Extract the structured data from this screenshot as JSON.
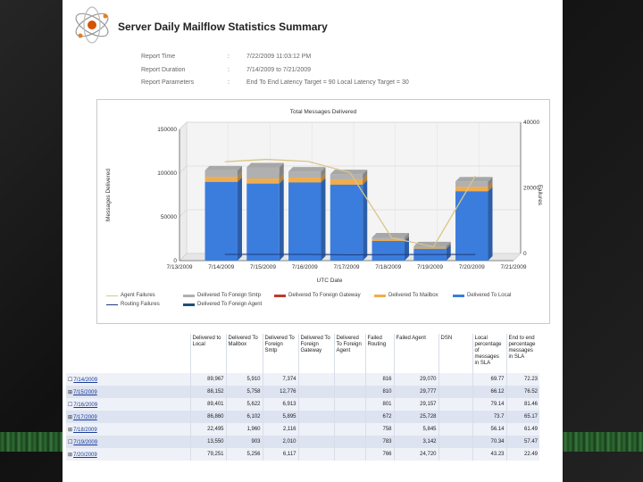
{
  "report": {
    "title": "Server Daily Mailflow Statistics Summary",
    "meta": [
      {
        "label": "Report Time",
        "sep": ":",
        "value": "7/22/2009 11:03:12 PM"
      },
      {
        "label": "Report Duration",
        "sep": ":",
        "value": "7/14/2009 to 7/21/2009"
      },
      {
        "label": "Report Parameters",
        "sep": ":",
        "value": "End To End Latency Target = 90 Local Latency Target = 30"
      }
    ]
  },
  "chart_data": {
    "type": "bar",
    "title": "Total Messages Delivered",
    "xlabel": "UTC Date",
    "ylabel": "Messages Delivered",
    "y2label": "Failures",
    "ylim": [
      0,
      150000
    ],
    "y2lim": [
      0,
      40000
    ],
    "yticks": [
      "0",
      "50000",
      "100000",
      "150000"
    ],
    "y2ticks": [
      "0",
      "20000",
      "40000"
    ],
    "categories": [
      "7/13/2009",
      "7/14/2009",
      "7/15/2009",
      "7/16/2009",
      "7/17/2009",
      "7/18/2009",
      "7/19/2009",
      "7/20/2009",
      "7/21/2009"
    ],
    "stack_series": [
      {
        "name": "Delivered To Local",
        "color": "#3b7ddd",
        "values": [
          null,
          89967,
          88152,
          89401,
          86860,
          22495,
          13550,
          79251,
          null
        ]
      },
      {
        "name": "Delivered To Mailbox",
        "color": "#f0ad4e",
        "values": [
          null,
          5910,
          5758,
          5622,
          6102,
          1960,
          903,
          5256,
          null
        ]
      },
      {
        "name": "Delivered To Foreign Smtp",
        "color": "#b0b0b0",
        "values": [
          null,
          7374,
          12776,
          6913,
          5895,
          2116,
          2010,
          6117,
          null
        ]
      },
      {
        "name": "Delivered To Foreign Gateway",
        "color": "#c0392b",
        "values": [
          null,
          0,
          0,
          0,
          0,
          0,
          0,
          0,
          null
        ]
      },
      {
        "name": "Delivered To Foreign Agent",
        "color": "#1f4e79",
        "values": [
          null,
          0,
          0,
          0,
          0,
          0,
          0,
          0,
          null
        ]
      }
    ],
    "line_series": [
      {
        "name": "Agent Failures",
        "color": "#d9c48a",
        "axis": "y2",
        "values": [
          null,
          29070,
          29777,
          29157,
          25728,
          5845,
          3142,
          24720,
          null
        ]
      },
      {
        "name": "Routing Failures",
        "color": "#1f3a7a",
        "axis": "y2",
        "values": [
          null,
          816,
          810,
          801,
          672,
          758,
          783,
          766,
          null
        ]
      }
    ],
    "legend": [
      "Agent Failures",
      "Delivered To Foreign Smtp",
      "Delivered To Foreign Gateway",
      "Delivered To Mailbox",
      "Delivered To Local",
      "Routing Failures",
      "Delivered To Foreign Agent"
    ]
  },
  "table": {
    "headers": [
      "",
      "Delivered to Local",
      "Delivered To Mailbox",
      "Delivered To Foreign Smtp",
      "Delivered To Foreign Gateway",
      "Delivered To Foreign Agent",
      "Failed Routing",
      "Failed Agent",
      "DSN",
      "Local percentage of messages in SLA",
      "End to end percentage messages in SLA"
    ],
    "rows": [
      {
        "expander": "☐",
        "date": "7/14/2009",
        "cells": [
          "89,967",
          "5,910",
          "7,374",
          "",
          "",
          "816",
          "29,070",
          "",
          "69.77",
          "72.23"
        ]
      },
      {
        "expander": "⊞",
        "date": "7/15/2009",
        "cells": [
          "88,152",
          "5,758",
          "12,776",
          "",
          "",
          "810",
          "29,777",
          "",
          "66.12",
          "76.52"
        ]
      },
      {
        "expander": "☐",
        "date": "7/16/2009",
        "cells": [
          "89,401",
          "5,622",
          "6,913",
          "",
          "",
          "801",
          "29,157",
          "",
          "79.14",
          "81.46"
        ]
      },
      {
        "expander": "⊞",
        "date": "7/17/2009",
        "cells": [
          "86,860",
          "6,102",
          "5,895",
          "",
          "",
          "672",
          "25,728",
          "",
          "73.7",
          "65.17"
        ]
      },
      {
        "expander": "⊞",
        "date": "7/18/2009",
        "cells": [
          "22,495",
          "1,960",
          "2,116",
          "",
          "",
          "758",
          "5,845",
          "",
          "56.14",
          "61.49"
        ]
      },
      {
        "expander": "☐",
        "date": "7/19/2009",
        "cells": [
          "13,550",
          "903",
          "2,010",
          "",
          "",
          "783",
          "3,142",
          "",
          "70.34",
          "57.47"
        ]
      },
      {
        "expander": "⊞",
        "date": "7/20/2009",
        "cells": [
          "79,251",
          "5,256",
          "6,117",
          "",
          "",
          "766",
          "24,720",
          "",
          "43.23",
          "22.49"
        ]
      }
    ]
  }
}
